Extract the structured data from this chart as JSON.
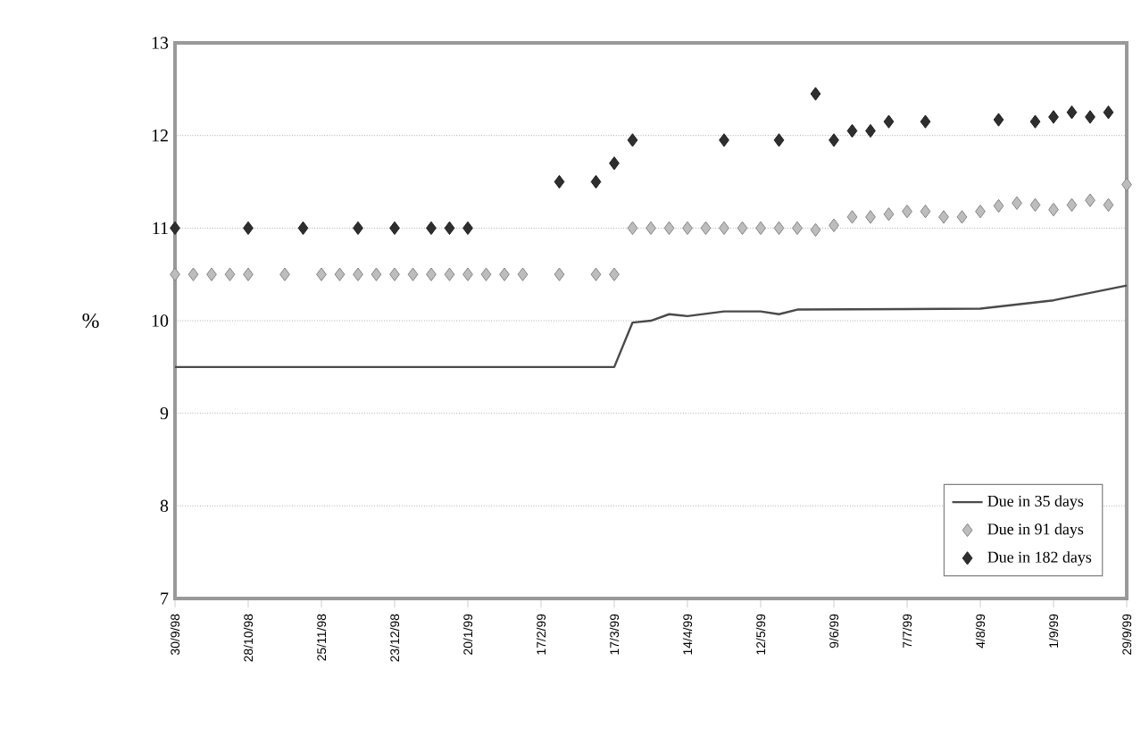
{
  "chart_data": {
    "type": "line",
    "ylabel": "%",
    "xlim": [
      "1998-09-30",
      "1999-09-29"
    ],
    "ylim": [
      7,
      13
    ],
    "yticks": [
      7,
      8,
      9,
      10,
      11,
      12,
      13
    ],
    "xticks": [
      {
        "value": "1998-09-30",
        "label": "30/9/98"
      },
      {
        "value": "1998-10-28",
        "label": "28/10/98"
      },
      {
        "value": "1998-11-25",
        "label": "25/11/98"
      },
      {
        "value": "1998-12-23",
        "label": "23/12/98"
      },
      {
        "value": "1999-01-20",
        "label": "20/1/99"
      },
      {
        "value": "1999-02-17",
        "label": "17/2/99"
      },
      {
        "value": "1999-03-17",
        "label": "17/3/99"
      },
      {
        "value": "1999-04-14",
        "label": "14/4/99"
      },
      {
        "value": "1999-05-12",
        "label": "12/5/99"
      },
      {
        "value": "1999-06-09",
        "label": "9/6/99"
      },
      {
        "value": "1999-07-07",
        "label": "7/7/99"
      },
      {
        "value": "1999-08-04",
        "label": "4/8/99"
      },
      {
        "value": "1999-09-01",
        "label": "1/9/99"
      },
      {
        "value": "1999-09-29",
        "label": "29/9/99"
      }
    ],
    "grid": "y",
    "legend": "bottom right",
    "series": [
      {
        "name": "Due in 35 days",
        "type": "line",
        "color": "#4a4a4a",
        "marker": "none",
        "line_style": "solid",
        "x": [
          "1998-09-30",
          "1999-03-17",
          "1999-03-24",
          "1999-03-31",
          "1999-04-07",
          "1999-04-14",
          "1999-04-28",
          "1999-05-12",
          "1999-05-19",
          "1999-05-26",
          "1999-08-04",
          "1999-09-01",
          "1999-09-29"
        ],
        "values": [
          9.5,
          9.5,
          9.98,
          10.0,
          10.07,
          10.05,
          10.1,
          10.1,
          10.07,
          10.12,
          10.13,
          10.22,
          10.38
        ]
      },
      {
        "name": "Due in 91 days",
        "type": "scatter",
        "color": "#bdbdbd",
        "marker": "diamond",
        "x": [
          "1998-09-30",
          "1998-10-07",
          "1998-10-14",
          "1998-10-21",
          "1998-10-28",
          "1998-11-11",
          "1998-11-25",
          "1998-12-02",
          "1998-12-09",
          "1998-12-16",
          "1998-12-23",
          "1998-12-30",
          "1999-01-06",
          "1999-01-13",
          "1999-01-20",
          "1999-01-27",
          "1999-02-03",
          "1999-02-10",
          "1999-02-24",
          "1999-03-10",
          "1999-03-17",
          "1999-03-24",
          "1999-03-31",
          "1999-04-07",
          "1999-04-14",
          "1999-04-21",
          "1999-04-28",
          "1999-05-05",
          "1999-05-12",
          "1999-05-19",
          "1999-05-26",
          "1999-06-02",
          "1999-06-09",
          "1999-06-16",
          "1999-06-23",
          "1999-06-30",
          "1999-07-07",
          "1999-07-14",
          "1999-07-21",
          "1999-07-28",
          "1999-08-04",
          "1999-08-11",
          "1999-08-18",
          "1999-08-25",
          "1999-09-01",
          "1999-09-08",
          "1999-09-15",
          "1999-09-22",
          "1999-09-29"
        ],
        "values": [
          10.5,
          10.5,
          10.5,
          10.5,
          10.5,
          10.5,
          10.5,
          10.5,
          10.5,
          10.5,
          10.5,
          10.5,
          10.5,
          10.5,
          10.5,
          10.5,
          10.5,
          10.5,
          10.5,
          10.5,
          10.5,
          11.0,
          11.0,
          11.0,
          11.0,
          11.0,
          11.0,
          11.0,
          11.0,
          11.0,
          11.0,
          10.98,
          11.03,
          11.12,
          11.12,
          11.15,
          11.18,
          11.18,
          11.12,
          11.12,
          11.18,
          11.24,
          11.27,
          11.25,
          11.2,
          11.25,
          11.3,
          11.25,
          11.47
        ]
      },
      {
        "name": "Due in 182 days",
        "type": "scatter",
        "color": "#2e2e2e",
        "marker": "diamond",
        "x": [
          "1998-09-30",
          "1998-10-28",
          "1998-11-18",
          "1998-12-09",
          "1998-12-23",
          "1999-01-06",
          "1999-01-13",
          "1999-01-20",
          "1999-02-24",
          "1999-03-10",
          "1999-03-17",
          "1999-03-24",
          "1999-04-28",
          "1999-05-19",
          "1999-06-02",
          "1999-06-09",
          "1999-06-16",
          "1999-06-23",
          "1999-06-30",
          "1999-07-14",
          "1999-08-11",
          "1999-08-25",
          "1999-09-01",
          "1999-09-08",
          "1999-09-15",
          "1999-09-22"
        ],
        "values": [
          11,
          11,
          11,
          11,
          11,
          11,
          11,
          11,
          11.5,
          11.5,
          11.7,
          11.95,
          11.95,
          11.95,
          12.45,
          11.95,
          12.05,
          12.05,
          12.15,
          12.15,
          12.17,
          12.15,
          12.2,
          12.25,
          12.2,
          12.25
        ]
      }
    ]
  }
}
